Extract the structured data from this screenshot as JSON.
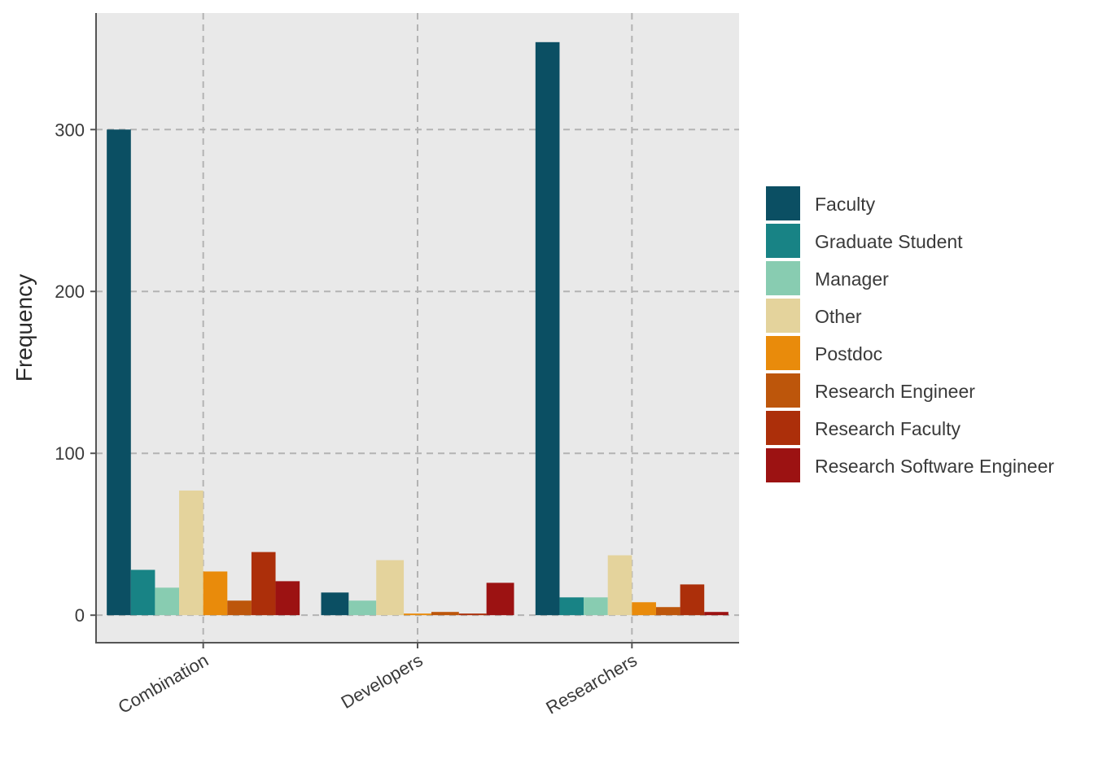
{
  "chart_data": {
    "type": "bar",
    "title": "",
    "xlabel": "",
    "ylabel": "Frequency",
    "categories": [
      "Combination",
      "Developers",
      "Researchers"
    ],
    "ylim": [
      -17,
      372
    ],
    "yticks": [
      0,
      100,
      200,
      300
    ],
    "grid": true,
    "legend_position": "right",
    "series": [
      {
        "name": "Faculty",
        "color": "#0b4f63",
        "values": [
          300,
          14,
          354
        ]
      },
      {
        "name": "Graduate Student",
        "color": "#188385",
        "values": [
          28,
          0,
          11
        ]
      },
      {
        "name": "Manager",
        "color": "#88ccb1",
        "values": [
          17,
          9,
          11
        ]
      },
      {
        "name": "Other",
        "color": "#e4d39c",
        "values": [
          77,
          34,
          37
        ]
      },
      {
        "name": "Postdoc",
        "color": "#e98b0b",
        "values": [
          27,
          1,
          8
        ]
      },
      {
        "name": "Research Engineer",
        "color": "#bd560b",
        "values": [
          9,
          2,
          5
        ]
      },
      {
        "name": "Research Faculty",
        "color": "#ac2f0a",
        "values": [
          39,
          1,
          19
        ]
      },
      {
        "name": "Research Software Engineer",
        "color": "#9c1212",
        "values": [
          21,
          20,
          2
        ]
      }
    ]
  }
}
